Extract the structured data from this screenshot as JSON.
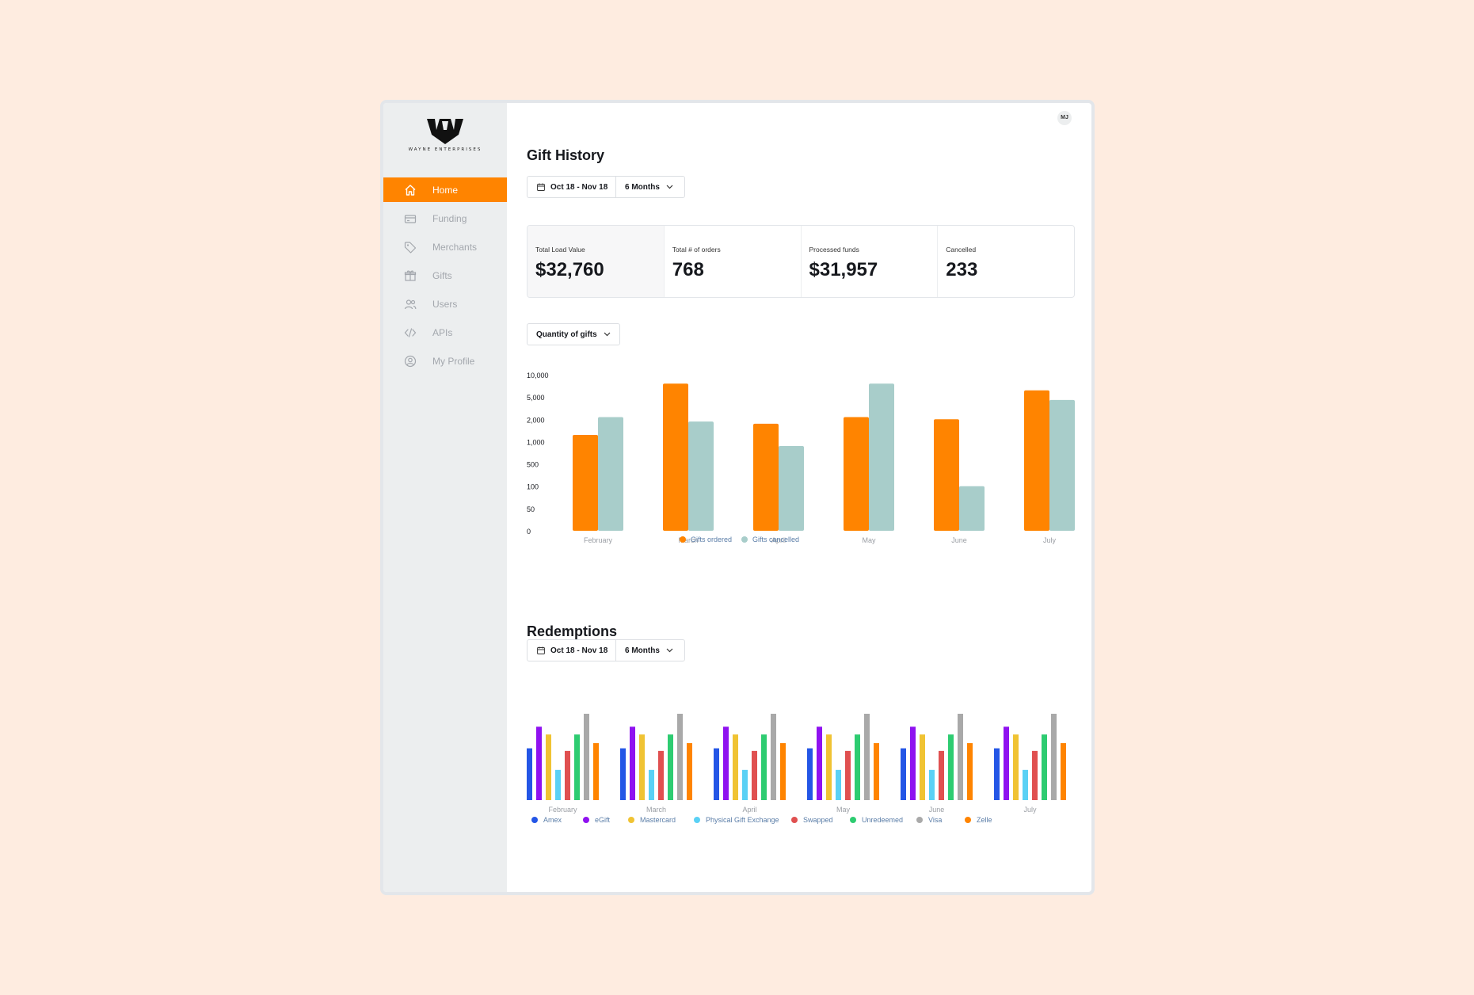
{
  "brand": {
    "name": "WAYNE ENTERPRISES"
  },
  "sidebar": {
    "items": [
      {
        "label": "Home",
        "icon": "home-icon",
        "active": true
      },
      {
        "label": "Funding",
        "icon": "funding-icon",
        "active": false
      },
      {
        "label": "Merchants",
        "icon": "tag-icon",
        "active": false
      },
      {
        "label": "Gifts",
        "icon": "gift-icon",
        "active": false
      },
      {
        "label": "Users",
        "icon": "users-icon",
        "active": false
      },
      {
        "label": "APIs",
        "icon": "code-icon",
        "active": false
      },
      {
        "label": "My Profile",
        "icon": "profile-icon",
        "active": false
      }
    ]
  },
  "header": {
    "avatar_initials": "MJ"
  },
  "gift_history": {
    "title": "Gift History",
    "date_range": "Oct 18 - Nov 18",
    "period": "6 Months",
    "stats": [
      {
        "label": "Total Load Value",
        "value": "$32,760"
      },
      {
        "label": "Total # of orders",
        "value": "768"
      },
      {
        "label": "Processed funds",
        "value": "$31,957"
      },
      {
        "label": "Cancelled",
        "value": "233"
      }
    ],
    "metric_select": "Quantity of gifts"
  },
  "redemptions": {
    "title": "Redemptions",
    "date_range": "Oct 18 - Nov 18",
    "period": "6 Months"
  },
  "colors": {
    "accent": "#ff8400",
    "cancelled": "#a8cdca",
    "amex": "#2456e6",
    "egift": "#8f12f0",
    "mastercard": "#f0c333",
    "physical": "#5ad1f5",
    "swapped": "#e05050",
    "unredeemed": "#2ecc71",
    "visa": "#a9a9a9",
    "zelle": "#ff8400"
  },
  "chart_data": [
    {
      "type": "bar",
      "title": "Gift History",
      "categories": [
        "February",
        "March",
        "April",
        "May",
        "June",
        "July"
      ],
      "y_ticks": [
        "10,000",
        "5,000",
        "2,000",
        "1,000",
        "500",
        "100",
        "50",
        "0"
      ],
      "y_ticks_numeric": [
        10000,
        5000,
        2000,
        1000,
        500,
        100,
        50,
        0
      ],
      "ylim": [
        0,
        10000
      ],
      "series": [
        {
          "name": "Gifts ordered",
          "color": "#ff8400",
          "values": [
            1300,
            8000,
            1800,
            2300,
            2000,
            6500
          ]
        },
        {
          "name": "Gifts cancelled",
          "color": "#a8cdca",
          "values": [
            2300,
            1900,
            900,
            8000,
            100,
            4600
          ]
        }
      ],
      "legend_position": "bottom"
    },
    {
      "type": "bar",
      "title": "Redemptions",
      "categories": [
        "February",
        "March",
        "April",
        "May",
        "June",
        "July"
      ],
      "ylim": [
        0,
        100
      ],
      "series": [
        {
          "name": "Amex",
          "color": "#2456e6",
          "values": [
            60,
            60,
            60,
            60,
            60,
            60
          ]
        },
        {
          "name": "eGift",
          "color": "#8f12f0",
          "values": [
            85,
            85,
            85,
            85,
            85,
            85
          ]
        },
        {
          "name": "Mastercard",
          "color": "#f0c333",
          "values": [
            76,
            76,
            76,
            76,
            76,
            76
          ]
        },
        {
          "name": "Physical Gift Exchange",
          "color": "#5ad1f5",
          "values": [
            35,
            35,
            35,
            35,
            35,
            35
          ]
        },
        {
          "name": "Swapped",
          "color": "#e05050",
          "values": [
            57,
            57,
            57,
            57,
            57,
            57
          ]
        },
        {
          "name": "Unredeemed",
          "color": "#2ecc71",
          "values": [
            76,
            76,
            76,
            76,
            76,
            76
          ]
        },
        {
          "name": "Visa",
          "color": "#a9a9a9",
          "values": [
            100,
            100,
            100,
            100,
            100,
            100
          ]
        },
        {
          "name": "Zelle",
          "color": "#ff8400",
          "values": [
            66,
            66,
            66,
            66,
            66,
            66
          ]
        }
      ],
      "legend_position": "bottom"
    }
  ]
}
